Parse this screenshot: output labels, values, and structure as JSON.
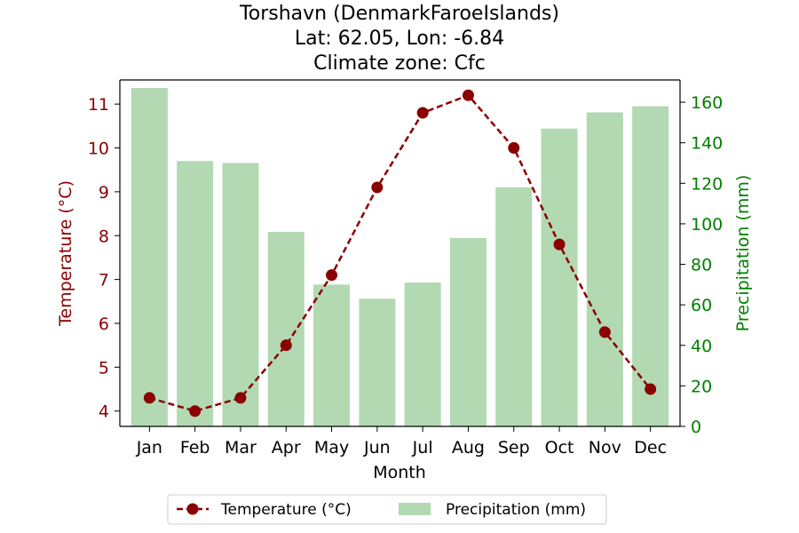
{
  "chart_data": {
    "type": "bar+line",
    "title_lines": [
      "Torshavn (DenmarkFaroeIslands)",
      "Lat: 62.05, Lon: -6.84",
      "Climate zone: Cfc"
    ],
    "xlabel": "Month",
    "categories": [
      "Jan",
      "Feb",
      "Mar",
      "Apr",
      "May",
      "Jun",
      "Jul",
      "Aug",
      "Sep",
      "Oct",
      "Nov",
      "Dec"
    ],
    "temperature": {
      "name": "Temperature (°C)",
      "axis_label": "Temperature (°C)",
      "color": "#8b0000",
      "values": [
        4.3,
        4.0,
        4.3,
        5.5,
        7.1,
        9.1,
        10.8,
        11.2,
        10.0,
        7.8,
        5.8,
        4.5
      ],
      "ylim": [
        3.65,
        11.55
      ],
      "ticks": [
        4,
        5,
        6,
        7,
        8,
        9,
        10,
        11
      ]
    },
    "precipitation": {
      "name": "Precipitation (mm)",
      "axis_label": "Precipitation (mm)",
      "color": "#008000",
      "bar_color": "#b2d9b2",
      "values": [
        167,
        131,
        130,
        96,
        70,
        63,
        71,
        93,
        118,
        147,
        155,
        158
      ],
      "ylim": [
        0,
        171
      ],
      "ticks": [
        0,
        20,
        40,
        60,
        80,
        100,
        120,
        140,
        160
      ]
    },
    "legend": {
      "placement": "bottom-center",
      "items": [
        "Temperature (°C)",
        "Precipitation (mm)"
      ]
    }
  }
}
